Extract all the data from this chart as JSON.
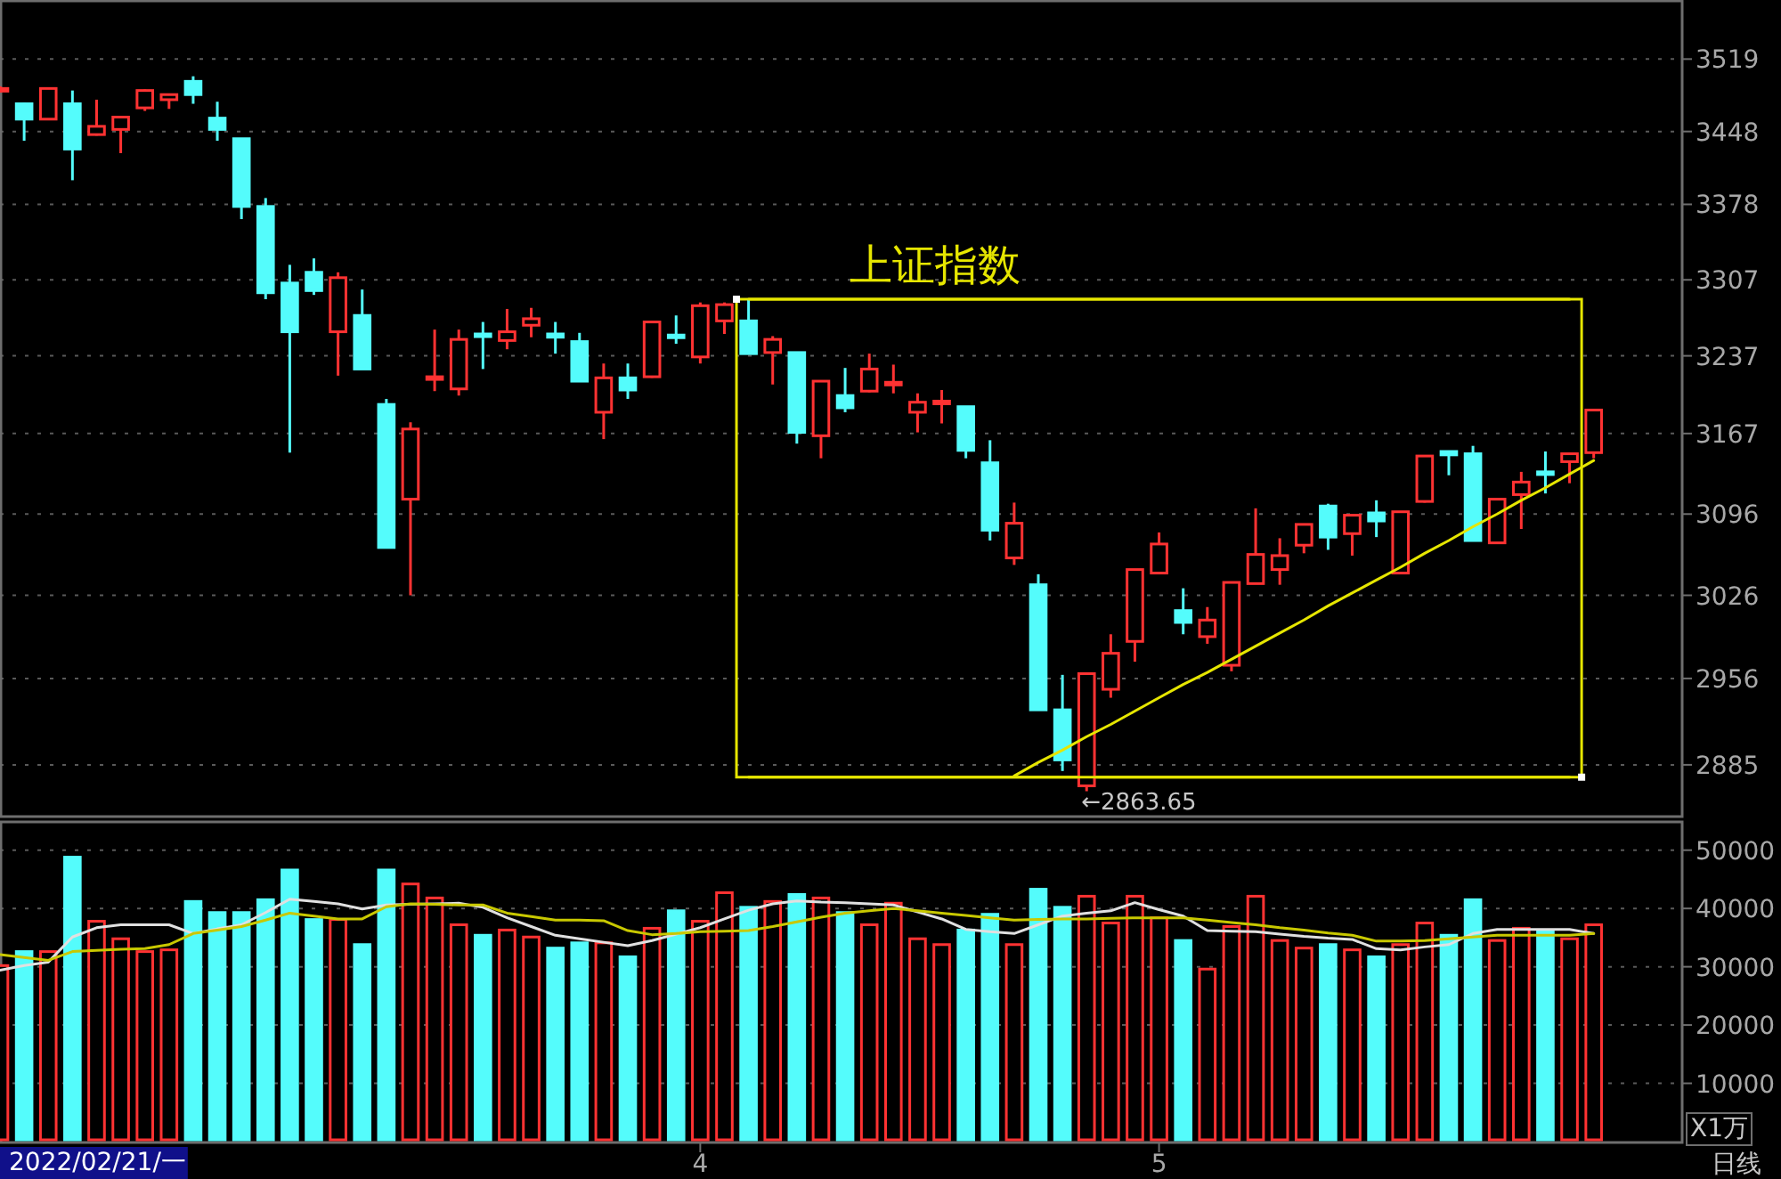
{
  "chart_data": [
    {
      "type": "candlestick",
      "title": "上证指数",
      "log": true,
      "grid": "y",
      "tick_labels": "y",
      "categories": [
        null,
        null,
        null,
        null,
        null,
        null,
        null,
        null,
        null,
        null,
        null,
        null,
        null,
        null,
        null,
        null,
        null,
        null,
        null,
        null,
        null,
        null,
        null,
        null,
        null,
        null,
        null,
        null,
        null,
        "4",
        null,
        null,
        null,
        null,
        null,
        null,
        null,
        null,
        null,
        null,
        null,
        null,
        null,
        null,
        null,
        null,
        null,
        null,
        "5",
        null,
        null,
        null,
        null,
        null,
        null,
        null,
        null,
        null,
        null,
        null,
        null,
        null,
        null,
        null,
        null,
        null,
        null
      ],
      "ohlc": [
        [
          3488,
          3492,
          3486,
          3490
        ],
        [
          3475,
          3476,
          3439,
          3460
        ],
        [
          3460,
          3491,
          3459,
          3490
        ],
        [
          3475,
          3488,
          3401,
          3431
        ],
        [
          3445,
          3479,
          3444,
          3453
        ],
        [
          3450,
          3463,
          3427,
          3462
        ],
        [
          3471,
          3489,
          3468,
          3488
        ],
        [
          3479,
          3485,
          3470,
          3484
        ],
        [
          3497,
          3502,
          3475,
          3484
        ],
        [
          3461,
          3477,
          3439,
          3450
        ],
        [
          3441,
          3441,
          3364,
          3376
        ],
        [
          3376,
          3384,
          3289,
          3295
        ],
        [
          3304,
          3321,
          3150,
          3259
        ],
        [
          3314,
          3327,
          3293,
          3297
        ],
        [
          3259,
          3314,
          3219,
          3309
        ],
        [
          3274,
          3298,
          3225,
          3225
        ],
        [
          3193,
          3198,
          3067,
          3067
        ],
        [
          3109,
          3177,
          3026,
          3171
        ],
        [
          3217,
          3261,
          3205,
          3218
        ],
        [
          3207,
          3261,
          3201,
          3252
        ],
        [
          3257,
          3268,
          3225,
          3255
        ],
        [
          3251,
          3280,
          3243,
          3259
        ],
        [
          3265,
          3281,
          3254,
          3271
        ],
        [
          3257,
          3268,
          3239,
          3254
        ],
        [
          3250,
          3258,
          3214,
          3214
        ],
        [
          3186,
          3230,
          3162,
          3217
        ],
        [
          3217,
          3230,
          3198,
          3206
        ],
        [
          3218,
          3268,
          3217,
          3268
        ],
        [
          3256,
          3274,
          3248,
          3254
        ],
        [
          3236,
          3286,
          3230,
          3283
        ],
        [
          3269,
          3286,
          3257,
          3284
        ],
        [
          3269,
          3289,
          3239,
          3239
        ],
        [
          3240,
          3255,
          3211,
          3252
        ],
        [
          3240,
          3240,
          3158,
          3168
        ],
        [
          3165,
          3214,
          3145,
          3214
        ],
        [
          3201,
          3226,
          3186,
          3190
        ],
        [
          3205,
          3239,
          3204,
          3225
        ],
        [
          3211,
          3229,
          3203,
          3213
        ],
        [
          3186,
          3203,
          3168,
          3195
        ],
        [
          3194,
          3206,
          3176,
          3196
        ],
        [
          3191,
          3191,
          3145,
          3152
        ],
        [
          3141,
          3161,
          3073,
          3082
        ],
        [
          3058,
          3106,
          3052,
          3088
        ],
        [
          3035,
          3044,
          2930,
          2930
        ],
        [
          2930,
          2959,
          2880,
          2889
        ],
        [
          2868,
          2960,
          2863.65,
          2960
        ],
        [
          2947,
          2993,
          2940,
          2977
        ],
        [
          2987,
          3048,
          2970,
          3048
        ],
        [
          3045,
          3080,
          3044,
          3070
        ],
        [
          3013,
          3032,
          2993,
          3003
        ],
        [
          2991,
          3016,
          2985,
          3005
        ],
        [
          2967,
          3037,
          2962,
          3037
        ],
        [
          3036,
          3101,
          3036,
          3061
        ],
        [
          3048,
          3075,
          3035,
          3060
        ],
        [
          3069,
          3087,
          3062,
          3087
        ],
        [
          3103,
          3105,
          3065,
          3076
        ],
        [
          3079,
          3095,
          3060,
          3095
        ],
        [
          3097,
          3108,
          3076,
          3090
        ],
        [
          3045,
          3098,
          3044,
          3098
        ],
        [
          3107,
          3147,
          3106,
          3147
        ],
        [
          3151,
          3151,
          3130,
          3148
        ],
        [
          3149,
          3156,
          3073,
          3073
        ],
        [
          3071,
          3109,
          3070,
          3109
        ],
        [
          3113,
          3133,
          3083,
          3124
        ],
        [
          3133,
          3151,
          3114,
          3131
        ],
        [
          3142,
          3149,
          3123,
          3149
        ],
        [
          3150,
          3188,
          3145,
          3188
        ]
      ],
      "colors": [
        "#ff3232",
        "#54fcfc",
        "#ff3232",
        "#54fcfc",
        "#ff3232",
        "#ff3232",
        "#ff3232",
        "#ff3232",
        "#54fcfc",
        "#54fcfc",
        "#54fcfc",
        "#54fcfc",
        "#54fcfc",
        "#54fcfc",
        "#ff3232",
        "#54fcfc",
        "#54fcfc",
        "#ff3232",
        "#ff3232",
        "#ff3232",
        "#54fcfc",
        "#ff3232",
        "#ff3232",
        "#54fcfc",
        "#54fcfc",
        "#ff3232",
        "#54fcfc",
        "#ff3232",
        "#54fcfc",
        "#ff3232",
        "#ff3232",
        "#54fcfc",
        "#ff3232",
        "#54fcfc",
        "#ff3232",
        "#54fcfc",
        "#ff3232",
        "#ff3232",
        "#ff3232",
        "#ff3232",
        "#54fcfc",
        "#54fcfc",
        "#ff3232",
        "#54fcfc",
        "#54fcfc",
        "#ff3232",
        "#ff3232",
        "#ff3232",
        "#ff3232",
        "#54fcfc",
        "#ff3232",
        "#ff3232",
        "#ff3232",
        "#ff3232",
        "#ff3232",
        "#54fcfc",
        "#ff3232",
        "#54fcfc",
        "#ff3232",
        "#ff3232",
        "#54fcfc",
        "#54fcfc",
        "#ff3232",
        "#ff3232",
        "#54fcfc",
        "#ff3232",
        "#ff3232"
      ],
      "series": [
        {
          "type": "line",
          "color": "#e6e600",
          "values": [
            null,
            null,
            null,
            null,
            null,
            null,
            null,
            null,
            null,
            null,
            null,
            null,
            null,
            null,
            null,
            null,
            null,
            null,
            null,
            null,
            null,
            null,
            null,
            null,
            null,
            null,
            null,
            null,
            null,
            null,
            null,
            null,
            null,
            null,
            null,
            null,
            null,
            null,
            null,
            null,
            null,
            null,
            2876,
            2887,
            2897,
            2908,
            2918,
            2929,
            2940,
            2951,
            2961,
            2972,
            2983,
            2994,
            3005,
            3017,
            3028,
            3039,
            3050,
            3062,
            3073,
            3085,
            3096,
            3108,
            3119,
            3131,
            3143
          ]
        },
        {
          "type": "line",
          "color": "#e6e600",
          "values": [
            null,
            null,
            null,
            null,
            null,
            null,
            null,
            null,
            null,
            null,
            null,
            null,
            null,
            null,
            null,
            null,
            null,
            null,
            null,
            null,
            null,
            null,
            null,
            null,
            null,
            null,
            null,
            null,
            null,
            null,
            null,
            3289,
            3289,
            3289,
            3289,
            3289,
            3289,
            3289,
            3289,
            3289,
            3289,
            3289,
            3289,
            3289,
            3289,
            3289,
            3289,
            3289,
            3289,
            3289,
            3289,
            3289,
            3289,
            3289,
            3289,
            3289,
            3289,
            3289,
            3289,
            3289,
            3289,
            3289,
            3289,
            3289,
            3289,
            3289,
            null
          ]
        },
        {
          "type": "line",
          "color": "#e6e600",
          "values": [
            null,
            null,
            null,
            null,
            null,
            null,
            null,
            null,
            null,
            null,
            null,
            null,
            null,
            null,
            null,
            null,
            null,
            null,
            null,
            null,
            null,
            null,
            null,
            null,
            null,
            null,
            null,
            null,
            null,
            null,
            null,
            2875,
            2875,
            2875,
            2875,
            2875,
            2875,
            2875,
            2875,
            2875,
            2875,
            2875,
            2875,
            2875,
            2875,
            2875,
            2875,
            2875,
            2875,
            2875,
            2875,
            2875,
            2875,
            2875,
            2875,
            2875,
            2875,
            2875,
            2875,
            2875,
            2875,
            2875,
            2875,
            2875,
            2875,
            2875,
            null
          ]
        }
      ],
      "ylim": [
        2844,
        3578
      ],
      "yticks": [
        2885,
        2956,
        3026,
        3096,
        3167,
        3237,
        3307,
        3378,
        3448,
        3519
      ],
      "annotations": [
        "←2863.65"
      ]
    },
    {
      "type": "bar",
      "grid": "y",
      "categories": [
        null,
        null,
        null,
        null,
        null,
        null,
        null,
        null,
        null,
        null,
        null,
        null,
        null,
        null,
        null,
        null,
        null,
        null,
        null,
        null,
        null,
        null,
        null,
        null,
        null,
        null,
        null,
        null,
        null,
        "4",
        null,
        null,
        null,
        null,
        null,
        null,
        null,
        null,
        null,
        null,
        null,
        null,
        null,
        null,
        null,
        null,
        null,
        null,
        "5",
        null,
        null,
        null,
        null,
        null,
        null,
        null,
        null,
        null,
        null,
        null,
        null,
        null,
        null,
        null,
        null,
        null,
        null
      ],
      "values": [
        30200,
        32600,
        32600,
        48800,
        37800,
        34800,
        32600,
        32900,
        41200,
        39300,
        39300,
        41500,
        46600,
        38100,
        38100,
        33800,
        46600,
        44200,
        41800,
        37200,
        35400,
        36300,
        35100,
        33200,
        34100,
        34100,
        31700,
        36600,
        39600,
        37800,
        42700,
        40200,
        41200,
        42400,
        41800,
        39300,
        37200,
        40900,
        34800,
        33800,
        36300,
        39000,
        33800,
        43300,
        40200,
        42100,
        37500,
        42100,
        38400,
        34500,
        29600,
        36900,
        42100,
        34500,
        33200,
        33800,
        32900,
        31700,
        33800,
        37500,
        35400,
        41500,
        34500,
        36600,
        36000,
        34800,
        37200
      ],
      "colors": [
        "#ff3232",
        "#54fcfc",
        "#ff3232",
        "#54fcfc",
        "#ff3232",
        "#ff3232",
        "#ff3232",
        "#ff3232",
        "#54fcfc",
        "#54fcfc",
        "#54fcfc",
        "#54fcfc",
        "#54fcfc",
        "#54fcfc",
        "#ff3232",
        "#54fcfc",
        "#54fcfc",
        "#ff3232",
        "#ff3232",
        "#ff3232",
        "#54fcfc",
        "#ff3232",
        "#ff3232",
        "#54fcfc",
        "#54fcfc",
        "#ff3232",
        "#54fcfc",
        "#ff3232",
        "#54fcfc",
        "#ff3232",
        "#ff3232",
        "#54fcfc",
        "#ff3232",
        "#54fcfc",
        "#ff3232",
        "#54fcfc",
        "#ff3232",
        "#ff3232",
        "#ff3232",
        "#ff3232",
        "#54fcfc",
        "#54fcfc",
        "#ff3232",
        "#54fcfc",
        "#54fcfc",
        "#ff3232",
        "#ff3232",
        "#ff3232",
        "#ff3232",
        "#54fcfc",
        "#ff3232",
        "#ff3232",
        "#ff3232",
        "#ff3232",
        "#ff3232",
        "#54fcfc",
        "#ff3232",
        "#54fcfc",
        "#ff3232",
        "#ff3232",
        "#54fcfc",
        "#54fcfc",
        "#ff3232",
        "#ff3232",
        "#54fcfc",
        "#ff3232",
        "#ff3232"
      ],
      "series": [
        {
          "type": "line",
          "color": "#e0e0e0",
          "values": [
            29400,
            30200,
            30800,
            35100,
            36700,
            37200,
            37200,
            37200,
            35700,
            36500,
            37200,
            39300,
            41600,
            41200,
            40800,
            39900,
            40600,
            40700,
            40800,
            40900,
            40200,
            38400,
            36900,
            35400,
            34800,
            34200,
            33600,
            34500,
            35600,
            36700,
            38200,
            39700,
            40800,
            41300,
            41100,
            41000,
            40800,
            40600,
            39400,
            38200,
            36400,
            36000,
            35700,
            37200,
            38700,
            39200,
            39600,
            41000,
            39800,
            38700,
            36200,
            36100,
            36000,
            35600,
            35200,
            34900,
            34700,
            33100,
            32900,
            33400,
            33800,
            35700,
            36400,
            36400,
            36400,
            36400,
            35700
          ]
        },
        {
          "type": "line",
          "color": "#c8c800",
          "values": [
            32100,
            31600,
            31100,
            32600,
            32800,
            33000,
            33100,
            33800,
            35700,
            36300,
            36900,
            38000,
            39200,
            38700,
            38200,
            38200,
            40300,
            40800,
            40700,
            40600,
            40600,
            39200,
            38600,
            38000,
            38000,
            37900,
            36200,
            35500,
            35700,
            36000,
            36100,
            36200,
            36900,
            37700,
            38500,
            39200,
            39600,
            40000,
            39600,
            39200,
            38800,
            38400,
            38000,
            38100,
            38200,
            38200,
            38300,
            38400,
            38400,
            38400,
            38000,
            37600,
            37200,
            36700,
            36300,
            35800,
            35400,
            34400,
            34400,
            34500,
            34800,
            35100,
            35400,
            35400,
            35400,
            35400,
            35700
          ]
        }
      ],
      "ylim": [
        0,
        55000
      ],
      "yticks": [
        10000,
        20000,
        30000,
        40000,
        50000
      ],
      "annotations": [
        "X1万",
        "日线",
        "2022/02/21/一"
      ]
    }
  ]
}
